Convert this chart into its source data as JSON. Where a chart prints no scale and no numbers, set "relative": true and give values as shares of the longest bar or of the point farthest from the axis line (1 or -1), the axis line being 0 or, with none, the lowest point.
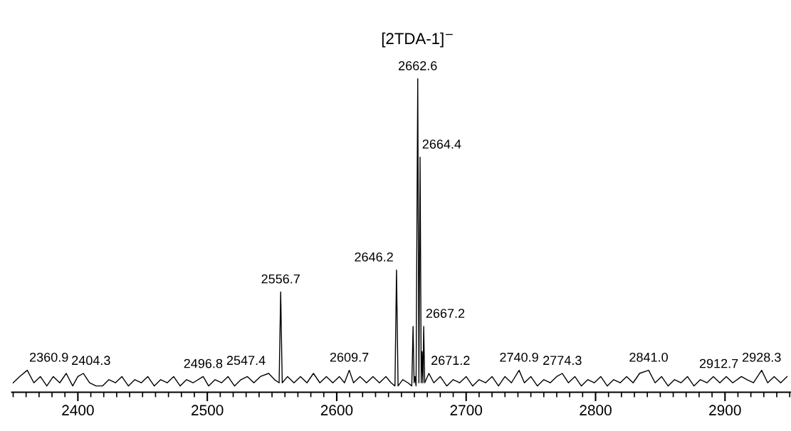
{
  "chart_data": {
    "type": "line",
    "title": "[2TDA-1]$^{−}$",
    "relative": true,
    "color": "#000000",
    "xlim": [
      2349,
      2951
    ],
    "xticks": [
      2400,
      2500,
      2600,
      2700,
      2800,
      2900
    ],
    "grid": false,
    "legend": false,
    "x": [
      2350,
      2355,
      2360.9,
      2366,
      2371,
      2376,
      2381,
      2386,
      2391,
      2396,
      2400,
      2404.3,
      2409,
      2414,
      2419,
      2424,
      2429,
      2434,
      2439,
      2444,
      2449,
      2454,
      2459,
      2464,
      2469,
      2474,
      2479,
      2484,
      2489,
      2496.8,
      2501,
      2506,
      2511,
      2516,
      2521,
      2526,
      2531,
      2536,
      2541,
      2547.4,
      2552,
      2555.5,
      2556.7,
      2557.9,
      2562,
      2567,
      2572,
      2577,
      2582,
      2587,
      2592,
      2597,
      2602,
      2606,
      2609.7,
      2613,
      2618,
      2623,
      2628,
      2633,
      2638,
      2642,
      2645,
      2646.2,
      2647.4,
      2651,
      2655,
      2658,
      2659,
      2659.8,
      2660.5,
      2661.3,
      2662.6,
      2663.5,
      2664.4,
      2665.3,
      2666,
      2666.6,
      2667.2,
      2668,
      2671.2,
      2675,
      2680,
      2685,
      2690,
      2695,
      2700,
      2705,
      2710,
      2715,
      2720,
      2725,
      2730,
      2735,
      2740.9,
      2745,
      2750,
      2755,
      2760,
      2765,
      2770,
      2774.3,
      2779,
      2784,
      2789,
      2794,
      2799,
      2804,
      2809,
      2814,
      2819,
      2824,
      2829,
      2834,
      2841.0,
      2846,
      2851,
      2856,
      2861,
      2866,
      2871,
      2876,
      2881,
      2886,
      2891,
      2896,
      2901,
      2906,
      2912.7,
      2917,
      2922,
      2928.3,
      2933,
      2938,
      2943,
      2948
    ],
    "values": [
      0.03,
      0.05,
      0.07,
      0.03,
      0.05,
      0.02,
      0.05,
      0.03,
      0.06,
      0.02,
      0.05,
      0.06,
      0.03,
      0.02,
      0.02,
      0.04,
      0.03,
      0.05,
      0.02,
      0.04,
      0.03,
      0.05,
      0.02,
      0.04,
      0.03,
      0.05,
      0.02,
      0.04,
      0.03,
      0.05,
      0.02,
      0.04,
      0.03,
      0.05,
      0.02,
      0.04,
      0.05,
      0.03,
      0.05,
      0.06,
      0.04,
      0.03,
      0.32,
      0.03,
      0.05,
      0.03,
      0.05,
      0.03,
      0.06,
      0.03,
      0.05,
      0.03,
      0.05,
      0.03,
      0.07,
      0.03,
      0.05,
      0.03,
      0.05,
      0.03,
      0.05,
      0.03,
      0.02,
      0.39,
      0.02,
      0.04,
      0.03,
      0.02,
      0.21,
      0.03,
      0.05,
      0.02,
      1.0,
      0.03,
      0.75,
      0.03,
      0.13,
      0.03,
      0.21,
      0.03,
      0.06,
      0.03,
      0.05,
      0.02,
      0.04,
      0.03,
      0.05,
      0.02,
      0.04,
      0.03,
      0.05,
      0.02,
      0.05,
      0.03,
      0.07,
      0.03,
      0.05,
      0.02,
      0.04,
      0.03,
      0.05,
      0.06,
      0.03,
      0.05,
      0.02,
      0.04,
      0.03,
      0.05,
      0.02,
      0.04,
      0.03,
      0.05,
      0.03,
      0.06,
      0.07,
      0.03,
      0.05,
      0.02,
      0.04,
      0.03,
      0.05,
      0.02,
      0.04,
      0.03,
      0.05,
      0.03,
      0.05,
      0.03,
      0.05,
      0.04,
      0.03,
      0.07,
      0.03,
      0.05,
      0.03,
      0.05
    ],
    "annotations": [
      {
        "text": "2360.9",
        "x": 2360.9,
        "y": 0.07
      },
      {
        "text": "2404.3",
        "x": 2404.3,
        "y": 0.06
      },
      {
        "text": "2496.8",
        "x": 2496.8,
        "y": 0.05
      },
      {
        "text": "2547.4",
        "x": 2547.4,
        "y": 0.06
      },
      {
        "text": "2556.7",
        "x": 2556.7,
        "y": 0.32
      },
      {
        "text": "2609.7",
        "x": 2609.7,
        "y": 0.07
      },
      {
        "text": "2646.2",
        "x": 2646.2,
        "y": 0.39
      },
      {
        "text": "2662.6",
        "x": 2662.6,
        "y": 1.0
      },
      {
        "text": "2664.4",
        "x": 2664.4,
        "y": 0.75
      },
      {
        "text": "2667.2",
        "x": 2667.2,
        "y": 0.21
      },
      {
        "text": "2671.2",
        "x": 2671.2,
        "y": 0.06
      },
      {
        "text": "2740.9",
        "x": 2740.9,
        "y": 0.07
      },
      {
        "text": "2774.3",
        "x": 2774.3,
        "y": 0.06
      },
      {
        "text": "2841.0",
        "x": 2841.0,
        "y": 0.07
      },
      {
        "text": "2912.7",
        "x": 2912.7,
        "y": 0.05
      },
      {
        "text": "2928.3",
        "x": 2928.3,
        "y": 0.07
      }
    ]
  }
}
